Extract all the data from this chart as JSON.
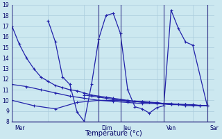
{
  "background_color": "#cce8f0",
  "grid_color": "#aaccdd",
  "line_color": "#2222aa",
  "xlabel": "Température (°c)",
  "ylim": [
    8,
    19
  ],
  "yticks": [
    8,
    9,
    10,
    11,
    12,
    13,
    14,
    15,
    16,
    17,
    18,
    19
  ],
  "day_labels": [
    "Mer",
    "Dim",
    "Jeu",
    "Ven",
    "Sar"
  ],
  "day_positions": [
    0,
    12,
    15,
    21,
    27
  ],
  "xlim": [
    0,
    28
  ],
  "series": [
    {
      "x": [
        0,
        1,
        2,
        3,
        4,
        5,
        6,
        7,
        8,
        9,
        10,
        11,
        12,
        13,
        14,
        15,
        16,
        17,
        18,
        19,
        20,
        21,
        22,
        23,
        24,
        25,
        26,
        27
      ],
      "y": [
        17,
        15.3,
        14.0,
        13.0,
        12.2,
        11.8,
        11.4,
        11.2,
        11.0,
        10.9,
        10.7,
        10.5,
        10.4,
        10.3,
        10.2,
        10.1,
        10.0,
        9.9,
        9.9,
        9.8,
        9.8,
        9.7,
        9.7,
        9.6,
        9.6,
        9.6,
        9.5,
        9.5
      ]
    },
    {
      "x": [
        0,
        2,
        4,
        6,
        8,
        10,
        12,
        14,
        16,
        18,
        20,
        22,
        24,
        26
      ],
      "y": [
        11.5,
        11.3,
        11.0,
        10.7,
        10.4,
        10.2,
        10.0,
        9.9,
        9.8,
        9.7,
        9.7,
        9.6,
        9.6,
        9.5
      ]
    },
    {
      "x": [
        0,
        3,
        6,
        9,
        12,
        15,
        18,
        21,
        24,
        27
      ],
      "y": [
        10.0,
        9.5,
        9.2,
        9.8,
        10.0,
        10.0,
        9.9,
        9.7,
        9.6,
        9.5
      ]
    },
    {
      "x": [
        5,
        6,
        7,
        8,
        9,
        10,
        11,
        12,
        13,
        14,
        15,
        16,
        17,
        18,
        19,
        20,
        21,
        22,
        23,
        24,
        25,
        27
      ],
      "y": [
        17.5,
        15.5,
        12.2,
        11.5,
        8.9,
        8.0,
        11.5,
        15.8,
        18.0,
        18.2,
        16.3,
        11.0,
        9.4,
        9.2,
        8.8,
        9.3,
        9.5,
        18.5,
        16.8,
        15.5,
        15.2,
        9.5
      ]
    },
    {
      "x": [
        10,
        11,
        12,
        13,
        14,
        15,
        16,
        17,
        18,
        19,
        20,
        21,
        22,
        23,
        24,
        25,
        26,
        27
      ],
      "y": [
        10.5,
        10.4,
        10.3,
        10.2,
        10.1,
        10.0,
        9.9,
        9.9,
        9.8,
        9.8,
        9.7,
        9.7,
        9.6,
        9.6,
        9.5,
        9.5,
        9.5,
        9.5
      ]
    }
  ]
}
